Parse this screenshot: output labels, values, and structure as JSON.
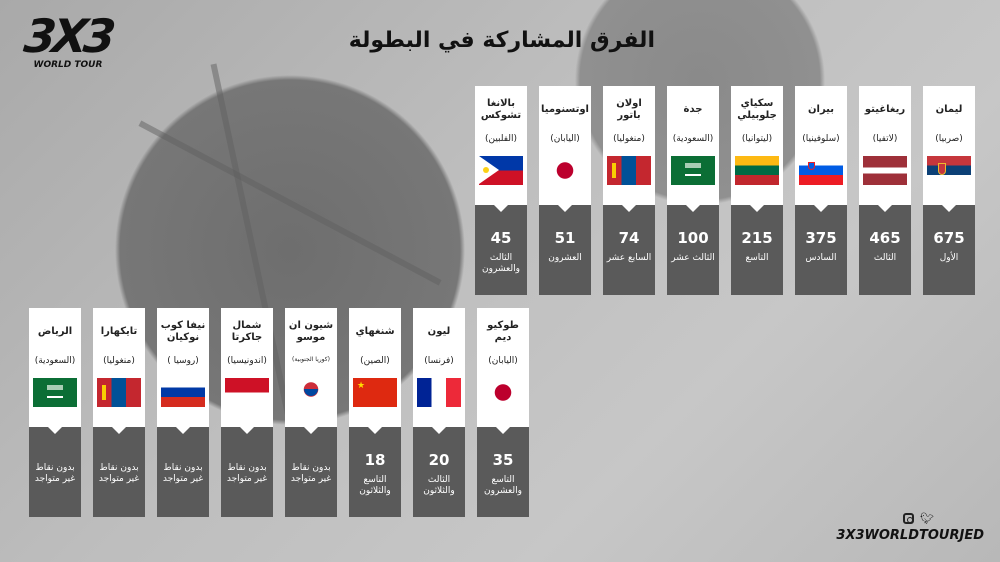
{
  "logo": {
    "mark": "3X3",
    "sub": "WORLD TOUR"
  },
  "title": "الفرق المشاركة في البطولة",
  "top_row": [
    {
      "name": "ليمان",
      "country": "(صربيا)",
      "flag": "serbia",
      "points": "675",
      "rank": "الأول"
    },
    {
      "name": "ريغاغيتو",
      "country": "(لاتفيا)",
      "flag": "latvia",
      "points": "465",
      "rank": "الثالث"
    },
    {
      "name": "بيران",
      "country": "(سلوفينيا)",
      "flag": "slovenia",
      "points": "375",
      "rank": "السادس"
    },
    {
      "name": "سكياي جلوبيلي",
      "country": "(ليتوانيا)",
      "flag": "lithuania",
      "points": "215",
      "rank": "التاسع"
    },
    {
      "name": "جدة",
      "country": "(السعودية)",
      "flag": "saudi",
      "points": "100",
      "rank": "الثالث عشر"
    },
    {
      "name": "اولان باتور",
      "country": "(منغوليا)",
      "flag": "mongolia",
      "points": "74",
      "rank": "السابع عشر"
    },
    {
      "name": "اوتسنوميا",
      "country": "(اليابان)",
      "flag": "japan",
      "points": "51",
      "rank": "العشرون"
    },
    {
      "name": "بالانغا تشوكس",
      "country": "(الفلبين)",
      "flag": "philippines",
      "points": "45",
      "rank": "الثالث والعشرون"
    }
  ],
  "bottom_row": [
    {
      "name": "طوكيو ديم",
      "country": "(اليابان)",
      "flag": "japan",
      "points": "35",
      "rank": "التاسع والعشرون"
    },
    {
      "name": "ليون",
      "country": "(فرنسا)",
      "flag": "france",
      "points": "20",
      "rank": "الثالث والثلاثون"
    },
    {
      "name": "شنغهاي",
      "country": "(الصين)",
      "flag": "china",
      "points": "18",
      "rank": "التاسع والثلاثون"
    },
    {
      "name": "شيون ان موسو",
      "country": "(كوريا الجنوبية)",
      "flag": "korea",
      "points": "",
      "rank": "بدون نقاط غير متواجد"
    },
    {
      "name": "شمال جاكرتا",
      "country": "(اندونيسيا)",
      "flag": "indonesia",
      "points": "",
      "rank": "بدون نقاط غير متواجد"
    },
    {
      "name": "نيفا كوب نوكيان",
      "country": "(روسيا )",
      "flag": "russia",
      "points": "",
      "rank": "بدون نقاط غير متواجد"
    },
    {
      "name": "تايكهارا",
      "country": "(منغوليا)",
      "flag": "mongolia",
      "points": "",
      "rank": "بدون نقاط غير متواجد"
    },
    {
      "name": "الرياض",
      "country": "(السعودية)",
      "flag": "saudi",
      "points": "",
      "rank": "بدون نقاط غير متواجد"
    }
  ],
  "footer": {
    "icons": [
      "instagram-icon",
      "twitter-icon"
    ],
    "handle": "3X3WORLDTOURJED"
  },
  "colors": {
    "card_dark": "#5a5a5a",
    "card_light": "#ffffff",
    "text": "#111111"
  }
}
